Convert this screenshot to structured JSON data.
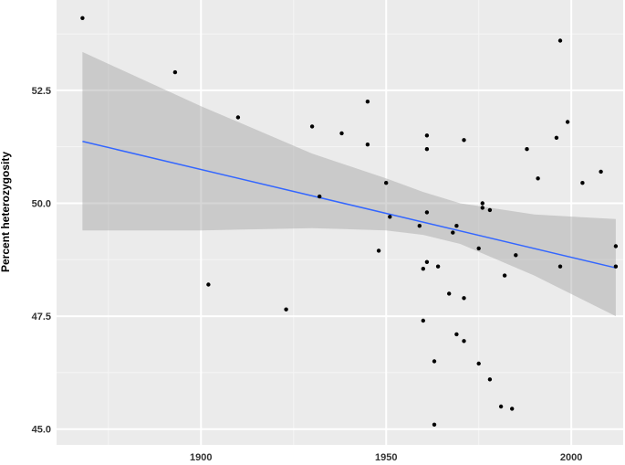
{
  "chart_data": {
    "type": "scatter",
    "title": "",
    "xlabel": "",
    "ylabel": "Percent heterozygosity",
    "xlim": [
      1861,
      2014
    ],
    "ylim": [
      44.65,
      54.5
    ],
    "x_ticks": [
      1900,
      1950,
      2000
    ],
    "x_tick_labels": [
      "1900",
      "1950",
      "2000"
    ],
    "y_ticks": [
      45.0,
      47.5,
      50.0,
      52.5
    ],
    "y_tick_labels": [
      "45.0",
      "47.5",
      "50.0",
      "52.5"
    ],
    "grid": true,
    "legend": "none",
    "colors": {
      "panel_background": "#ebebeb",
      "grid_major": "#ffffff",
      "grid_minor": "#f5f5f5",
      "points": "#000000",
      "trend_line": "#3366ff",
      "confidence_band": "#999999"
    },
    "points": [
      {
        "x": 1868,
        "y": 54.1
      },
      {
        "x": 1893,
        "y": 52.9
      },
      {
        "x": 1902,
        "y": 48.2
      },
      {
        "x": 1910,
        "y": 51.9
      },
      {
        "x": 1923,
        "y": 47.65
      },
      {
        "x": 1930,
        "y": 51.7
      },
      {
        "x": 1932,
        "y": 50.15
      },
      {
        "x": 1938,
        "y": 51.55
      },
      {
        "x": 1945,
        "y": 52.25
      },
      {
        "x": 1945,
        "y": 51.3
      },
      {
        "x": 1948,
        "y": 48.95
      },
      {
        "x": 1950,
        "y": 50.45
      },
      {
        "x": 1951,
        "y": 49.7
      },
      {
        "x": 1959,
        "y": 49.5
      },
      {
        "x": 1960,
        "y": 47.4
      },
      {
        "x": 1960,
        "y": 48.55
      },
      {
        "x": 1961,
        "y": 51.5
      },
      {
        "x": 1961,
        "y": 51.2
      },
      {
        "x": 1961,
        "y": 49.8
      },
      {
        "x": 1961,
        "y": 48.7
      },
      {
        "x": 1963,
        "y": 46.5
      },
      {
        "x": 1963,
        "y": 45.1
      },
      {
        "x": 1964,
        "y": 48.6
      },
      {
        "x": 1967,
        "y": 48.0
      },
      {
        "x": 1968,
        "y": 49.35
      },
      {
        "x": 1969,
        "y": 49.5
      },
      {
        "x": 1969,
        "y": 47.1
      },
      {
        "x": 1971,
        "y": 46.95
      },
      {
        "x": 1971,
        "y": 47.9
      },
      {
        "x": 1971,
        "y": 51.4
      },
      {
        "x": 1975,
        "y": 46.45
      },
      {
        "x": 1975,
        "y": 49.0
      },
      {
        "x": 1976,
        "y": 50.0
      },
      {
        "x": 1976,
        "y": 49.9
      },
      {
        "x": 1978,
        "y": 49.85
      },
      {
        "x": 1978,
        "y": 46.1
      },
      {
        "x": 1981,
        "y": 45.5
      },
      {
        "x": 1982,
        "y": 48.4
      },
      {
        "x": 1984,
        "y": 45.45
      },
      {
        "x": 1985,
        "y": 48.85
      },
      {
        "x": 1988,
        "y": 51.2
      },
      {
        "x": 1991,
        "y": 50.55
      },
      {
        "x": 1996,
        "y": 51.45
      },
      {
        "x": 1997,
        "y": 53.6
      },
      {
        "x": 1997,
        "y": 48.6
      },
      {
        "x": 1999,
        "y": 51.8
      },
      {
        "x": 2003,
        "y": 50.45
      },
      {
        "x": 2008,
        "y": 50.7
      },
      {
        "x": 2012,
        "y": 49.05
      },
      {
        "x": 2012,
        "y": 48.6
      }
    ],
    "trend_line": {
      "method": "linear",
      "x": [
        1868,
        2012
      ],
      "y": [
        51.37,
        48.57
      ]
    },
    "confidence_band": {
      "x": [
        1868,
        1900,
        1930,
        1950,
        1960,
        1970,
        1990,
        2012
      ],
      "lower": [
        49.4,
        49.4,
        49.45,
        49.4,
        49.3,
        49.1,
        48.4,
        47.5
      ],
      "upper": [
        53.35,
        52.15,
        51.1,
        50.55,
        50.25,
        50.0,
        49.75,
        49.65
      ]
    }
  }
}
